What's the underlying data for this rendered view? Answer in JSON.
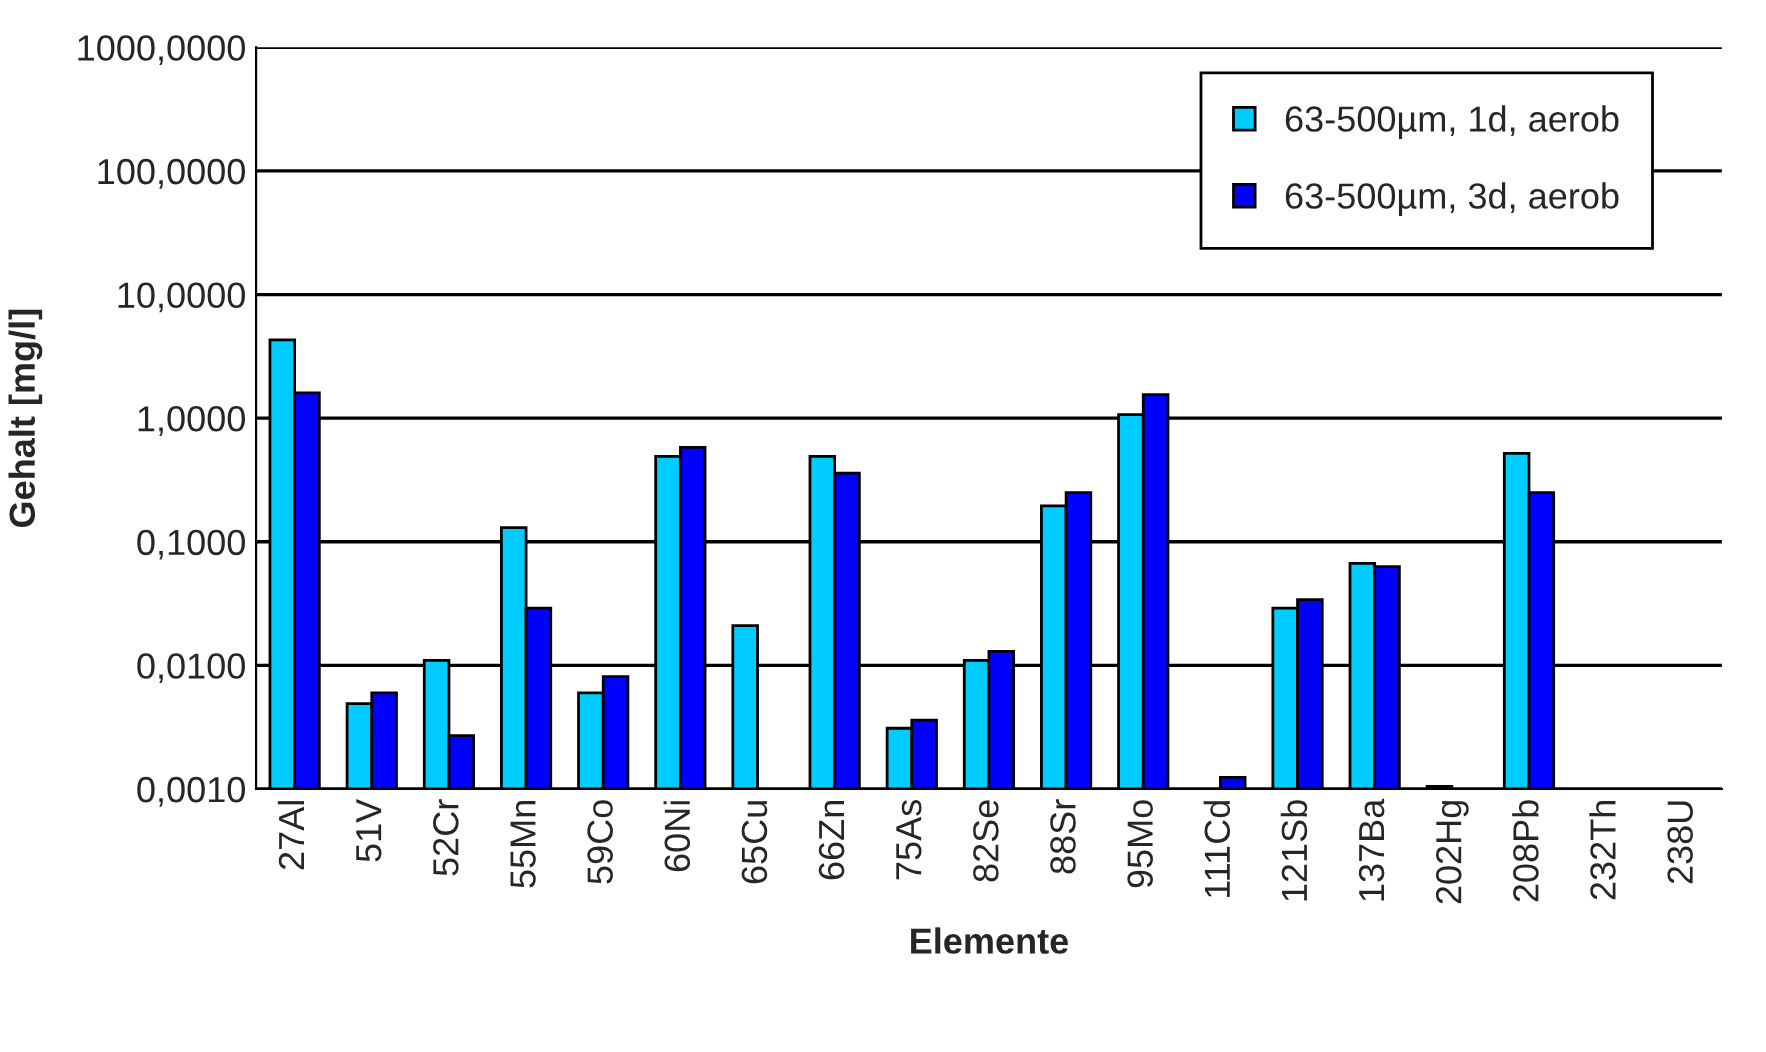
{
  "chart_data": {
    "type": "bar",
    "xlabel": "Elemente",
    "ylabel": "Gehalt [mg/l]",
    "categories": [
      "27Al",
      "51V",
      "52Cr",
      "55Mn",
      "59Co",
      "60Ni",
      "65Cu",
      "66Zn",
      "75As",
      "82Se",
      "88Sr",
      "95Mo",
      "111Cd",
      "121Sb",
      "137Ba",
      "202Hg",
      "208Pb",
      "232Th",
      "238U"
    ],
    "series": [
      {
        "name": "63-500µm, 1d, aerob",
        "color": "#00ccff",
        "values": [
          4.3,
          0.0049,
          0.011,
          0.13,
          0.006,
          0.49,
          0.021,
          0.49,
          0.0031,
          0.011,
          0.195,
          1.07,
          null,
          0.029,
          0.067,
          0.00105,
          0.52,
          null,
          null
        ]
      },
      {
        "name": "63-500µm, 3d, aerob",
        "color": "#0000ff",
        "values": [
          1.6,
          0.006,
          0.0027,
          0.029,
          0.0081,
          0.58,
          null,
          0.36,
          0.0036,
          0.013,
          0.25,
          1.55,
          0.00124,
          0.034,
          0.063,
          null,
          0.25,
          null,
          null
        ]
      }
    ],
    "log": "y",
    "ylim": [
      0.001,
      1000
    ],
    "yticks": [
      {
        "value": 0.001,
        "label": "0,0010"
      },
      {
        "value": 0.01,
        "label": "0,0100"
      },
      {
        "value": 0.1,
        "label": "0,1000"
      },
      {
        "value": 1,
        "label": "1,0000"
      },
      {
        "value": 10,
        "label": "10,0000"
      },
      {
        "value": 100,
        "label": "100,0000"
      },
      {
        "value": 1000,
        "label": "1000,0000"
      }
    ],
    "grid": "y",
    "legend": "top right"
  }
}
